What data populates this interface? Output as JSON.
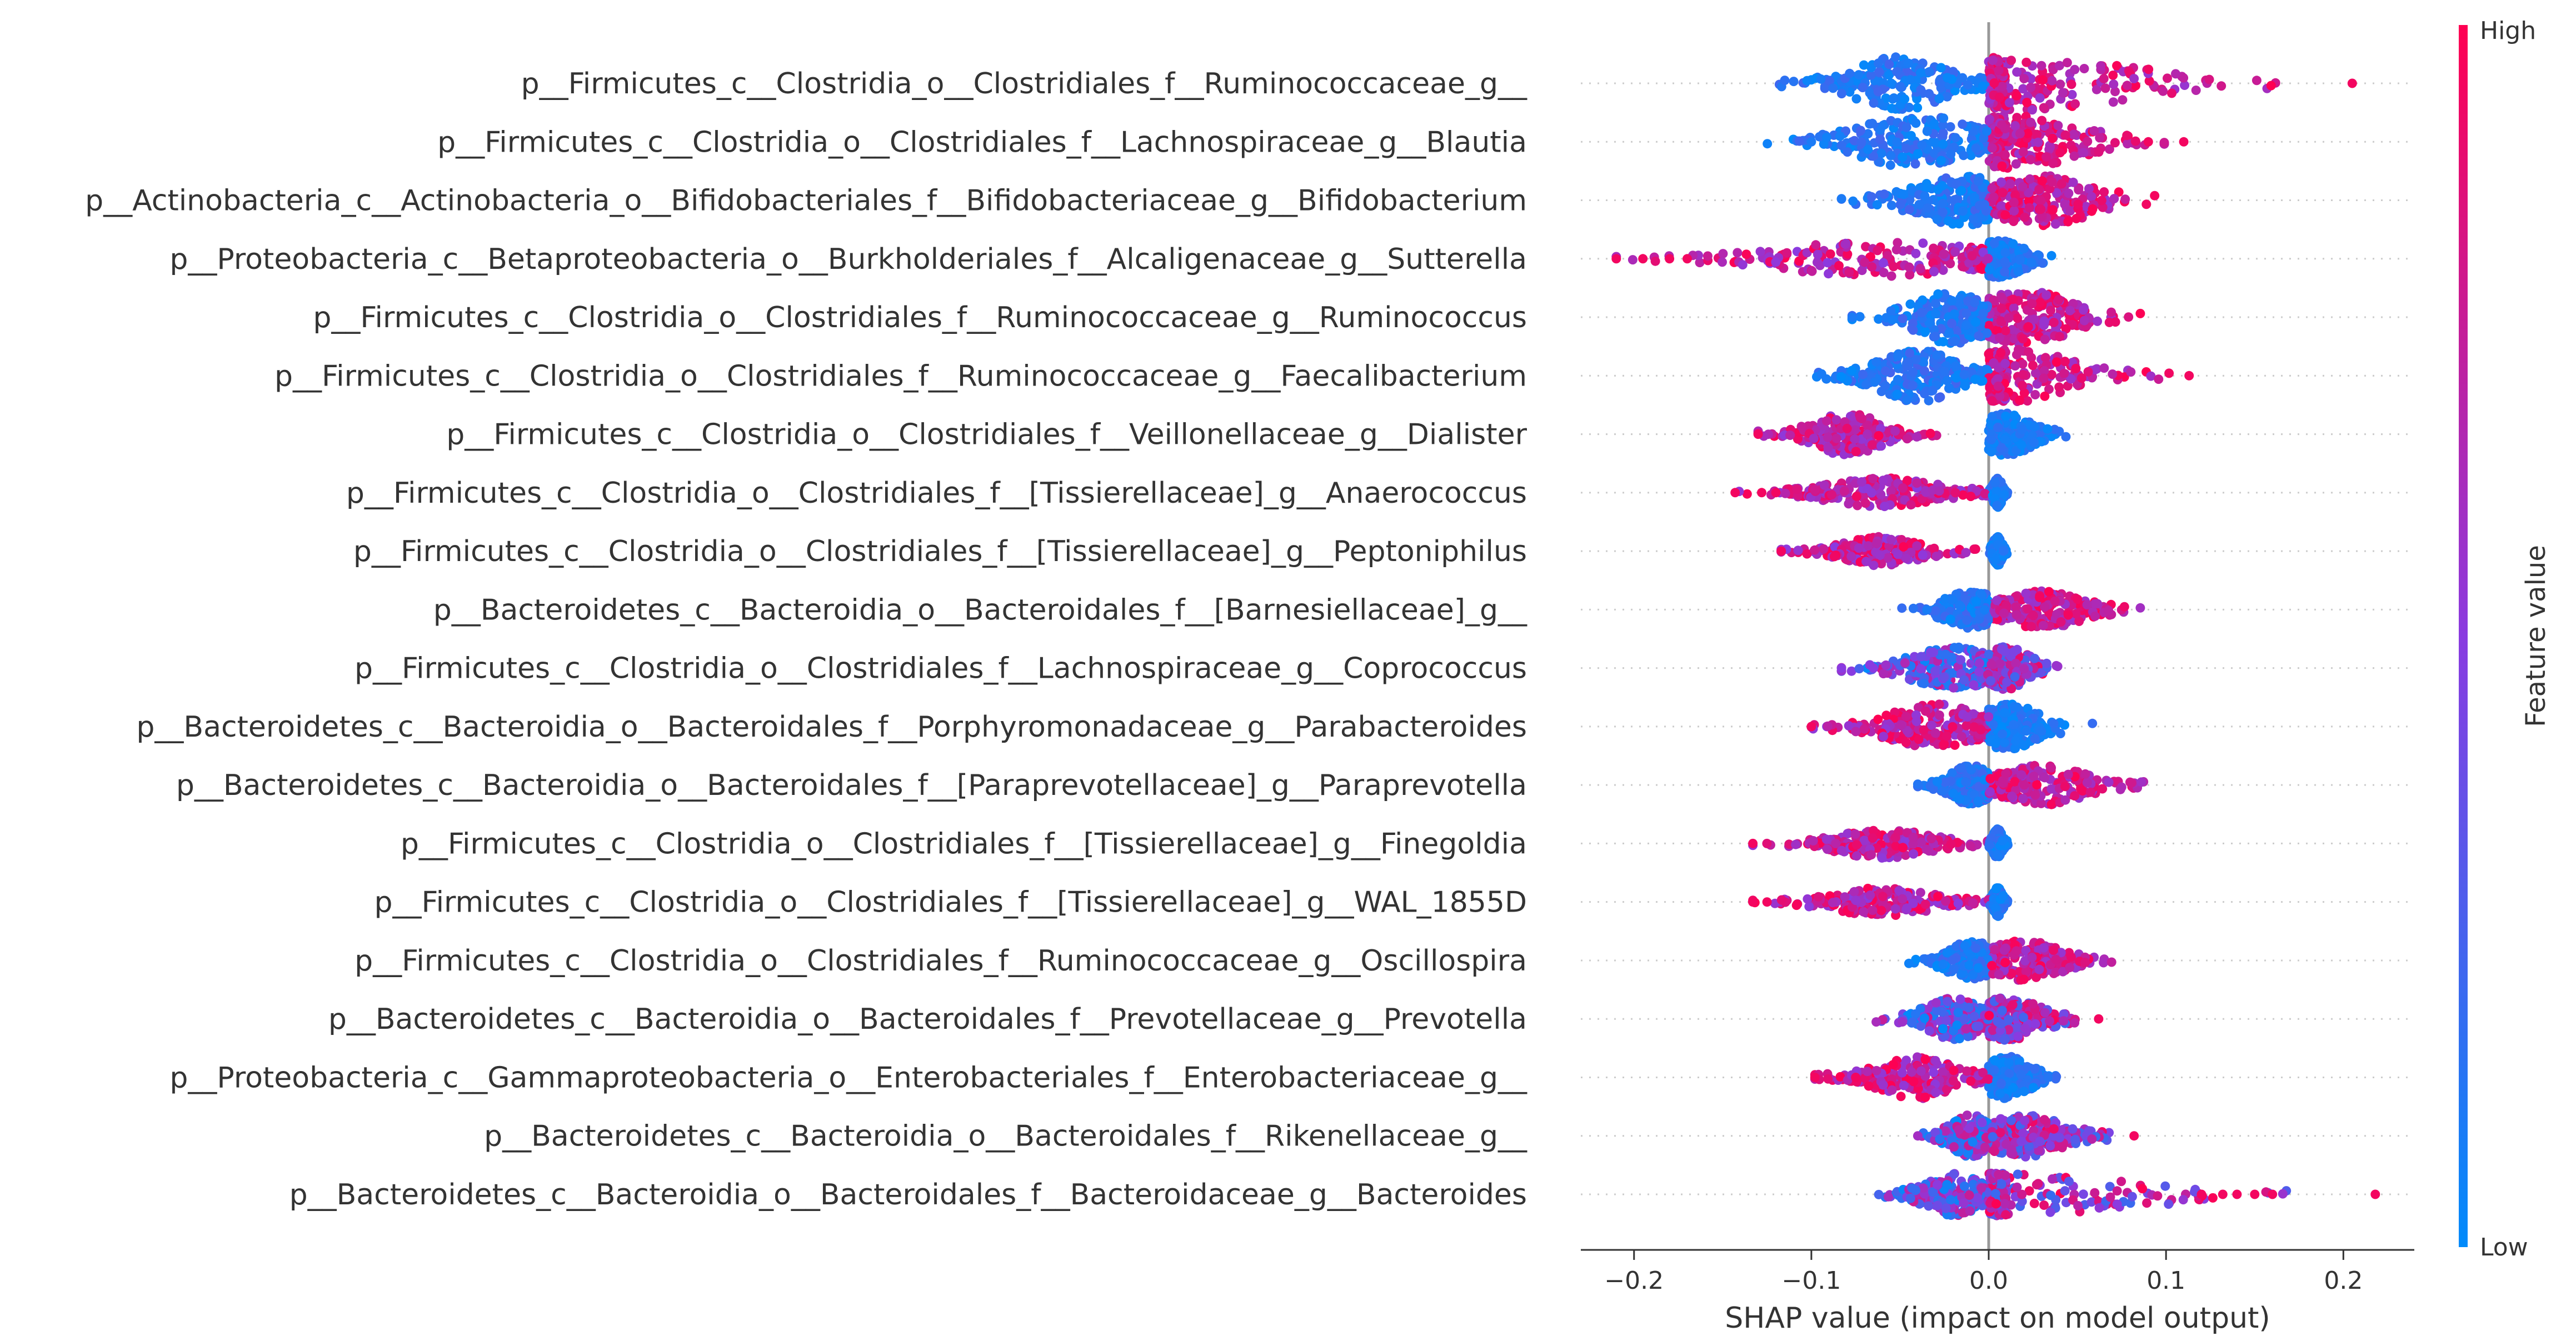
{
  "chart_data": {
    "type": "scatter",
    "subtype": "shap-beeswarm",
    "title": "",
    "xlabel": "SHAP value (impact on model output)",
    "ylabel": "",
    "xlim": [
      -0.23,
      0.24
    ],
    "xticks": [
      -0.2,
      -0.1,
      0.0,
      0.1,
      0.2
    ],
    "xtick_labels": [
      "−0.2",
      "−0.1",
      "0.0",
      "0.1",
      "0.2"
    ],
    "grid": "dotted row guides",
    "zero_line": true,
    "colorbar": {
      "title": "Feature value",
      "high_label": "High",
      "low_label": "Low",
      "low_color": "#008bfb",
      "high_color": "#ff0052"
    },
    "features": [
      {
        "name": "p__Firmicutes_c__Clostridia_o__Clostridiales_f__Ruminococcaceae_g__",
        "min": -0.118,
        "max": 0.205,
        "neg_mode": -0.05,
        "pos_mode": 0.02,
        "width": 1.0,
        "low_side": "neg",
        "outliers": [
          0.205
        ]
      },
      {
        "name": "p__Firmicutes_c__Clostridia_o__Clostridiales_f__Lachnospiraceae_g__Blautia",
        "min": -0.128,
        "max": 0.11,
        "neg_mode": -0.04,
        "pos_mode": 0.015,
        "width": 1.0,
        "low_side": "neg",
        "outliers": [
          -0.1,
          0.09,
          0.11
        ]
      },
      {
        "name": "p__Actinobacteria_c__Actinobacteria_o__Bifidobacteriales_f__Bifidobacteriaceae_g__Bifidobacterium",
        "min": -0.083,
        "max": 0.11,
        "neg_mode": -0.015,
        "pos_mode": 0.03,
        "width": 0.95,
        "low_side": "neg",
        "outliers": []
      },
      {
        "name": "p__Proteobacteria_c__Betaproteobacteria_o__Burkholderiales_f__Alcaligenaceae_g__Sutterella",
        "min": -0.21,
        "max": 0.045,
        "neg_mode": -0.06,
        "pos_mode": 0.005,
        "width": 0.7,
        "low_side": "pos",
        "outliers": [
          -0.21,
          -0.195,
          -0.18,
          -0.17
        ]
      },
      {
        "name": "p__Firmicutes_c__Clostridia_o__Clostridiales_f__Ruminococcaceae_g__Ruminococcus",
        "min": -0.077,
        "max": 0.095,
        "neg_mode": -0.02,
        "pos_mode": 0.02,
        "width": 1.0,
        "low_side": "neg",
        "outliers": [
          -0.077
        ]
      },
      {
        "name": "p__Firmicutes_c__Clostridia_o__Clostridiales_f__Ruminococcaceae_g__Faecalibacterium",
        "min": -0.097,
        "max": 0.113,
        "neg_mode": -0.04,
        "pos_mode": 0.01,
        "width": 1.0,
        "low_side": "neg",
        "outliers": [
          0.113
        ]
      },
      {
        "name": "p__Firmicutes_c__Clostridia_o__Clostridiales_f__Veillonellaceae_g__Dialister",
        "min": -0.13,
        "max": 0.05,
        "neg_mode": -0.08,
        "pos_mode": 0.01,
        "width": 0.8,
        "low_side": "pos",
        "outliers": [
          -0.13
        ]
      },
      {
        "name": "p__Firmicutes_c__Clostridia_o__Clostridiales_f__[Tissierellaceae]_g__Anaerococcus",
        "min": -0.143,
        "max": 0.012,
        "neg_mode": -0.06,
        "pos_mode": 0.005,
        "width": 0.55,
        "low_side": "pos",
        "outliers": [
          -0.143,
          -0.128,
          -0.12
        ]
      },
      {
        "name": "p__Firmicutes_c__Clostridia_o__Clostridiales_f__[Tissierellaceae]_g__Peptoniphilus",
        "min": -0.117,
        "max": 0.012,
        "neg_mode": -0.06,
        "pos_mode": 0.005,
        "width": 0.55,
        "low_side": "pos",
        "outliers": [
          -0.117
        ]
      },
      {
        "name": "p__Bacteroidetes_c__Bacteroidia_o__Bacteroidales_f__[Barnesiellaceae]_g__",
        "min": -0.05,
        "max": 0.095,
        "neg_mode": -0.01,
        "pos_mode": 0.03,
        "width": 0.7,
        "low_side": "neg",
        "outliers": []
      },
      {
        "name": "p__Firmicutes_c__Clostridia_o__Clostridiales_f__Lachnospiraceae_g__Coprococcus",
        "min": -0.083,
        "max": 0.045,
        "neg_mode": -0.02,
        "pos_mode": 0.01,
        "width": 0.8,
        "low_side": "mixed",
        "outliers": [
          -0.083,
          -0.065
        ]
      },
      {
        "name": "p__Bacteroidetes_c__Bacteroidia_o__Bacteroidales_f__Porphyromonadaceae_g__Parabacteroides",
        "min": -0.1,
        "max": 0.065,
        "neg_mode": -0.03,
        "pos_mode": 0.01,
        "width": 0.85,
        "low_side": "pos",
        "outliers": [
          -0.1
        ]
      },
      {
        "name": "p__Bacteroidetes_c__Bacteroidia_o__Bacteroidales_f__[Paraprevotellaceae]_g__Paraprevotella",
        "min": -0.04,
        "max": 0.097,
        "neg_mode": -0.01,
        "pos_mode": 0.03,
        "width": 0.75,
        "low_side": "neg",
        "outliers": []
      },
      {
        "name": "p__Firmicutes_c__Clostridia_o__Clostridiales_f__[Tissierellaceae]_g__Finegoldia",
        "min": -0.133,
        "max": 0.012,
        "neg_mode": -0.06,
        "pos_mode": 0.005,
        "width": 0.55,
        "low_side": "pos",
        "outliers": [
          -0.133
        ]
      },
      {
        "name": "p__Firmicutes_c__Clostridia_o__Clostridiales_f__[Tissierellaceae]_g__WAL_1855D",
        "min": -0.133,
        "max": 0.012,
        "neg_mode": -0.06,
        "pos_mode": 0.005,
        "width": 0.55,
        "low_side": "pos",
        "outliers": [
          -0.133,
          -0.125
        ]
      },
      {
        "name": "p__Firmicutes_c__Clostridia_o__Clostridiales_f__Ruminococcaceae_g__Oscillospira",
        "min": -0.045,
        "max": 0.077,
        "neg_mode": -0.01,
        "pos_mode": 0.02,
        "width": 0.75,
        "low_side": "neg",
        "outliers": []
      },
      {
        "name": "p__Bacteroidetes_c__Bacteroidia_o__Bacteroidales_f__Prevotellaceae_g__Prevotella",
        "min": -0.065,
        "max": 0.062,
        "neg_mode": -0.02,
        "pos_mode": 0.01,
        "width": 0.8,
        "low_side": "mixed",
        "outliers": [
          0.062
        ]
      },
      {
        "name": "p__Proteobacteria_c__Gammaproteobacteria_o__Enterobacteriales_f__Enterobacteriaceae_g__",
        "min": -0.098,
        "max": 0.045,
        "neg_mode": -0.04,
        "pos_mode": 0.01,
        "width": 0.8,
        "low_side": "pos",
        "outliers": [
          -0.098,
          -0.075
        ]
      },
      {
        "name": "p__Bacteroidetes_c__Bacteroidia_o__Bacteroidales_f__Rikenellaceae_g__",
        "min": -0.04,
        "max": 0.082,
        "neg_mode": -0.01,
        "pos_mode": 0.02,
        "width": 0.8,
        "low_side": "mixed",
        "outliers": [
          0.082
        ]
      },
      {
        "name": "p__Bacteroidetes_c__Bacteroidia_o__Bacteroidales_f__Bacteroidaceae_g__Bacteroides",
        "min": -0.062,
        "max": 0.218,
        "neg_mode": -0.02,
        "pos_mode": 0.005,
        "width": 0.8,
        "low_side": "mixed",
        "outliers": [
          0.12,
          0.132,
          0.14,
          0.15,
          0.16,
          0.218
        ]
      }
    ]
  }
}
